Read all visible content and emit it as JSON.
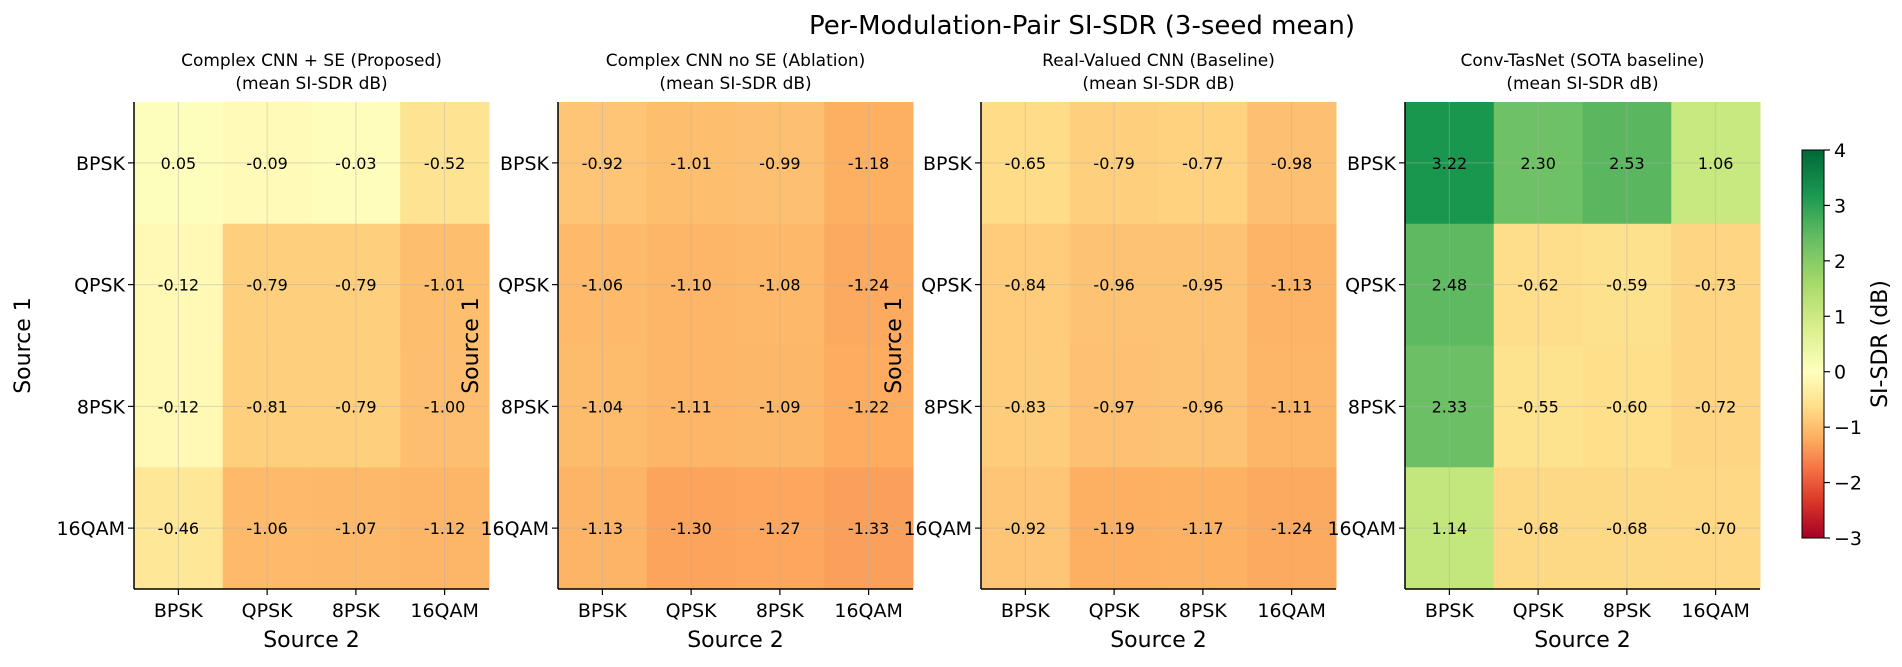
{
  "figure": {
    "title": "Per-Modulation-Pair SI-SDR (3-seed mean)"
  },
  "colorbar": {
    "label": "SI-SDR (dB)",
    "min": -3,
    "max": 4,
    "ticks": [
      -3,
      -2,
      -1,
      0,
      1,
      2,
      3,
      4
    ],
    "tick_labels": [
      "−3",
      "−2",
      "−1",
      "0",
      "1",
      "2",
      "3",
      "4"
    ],
    "colormap": "RdYlGn"
  },
  "chart_data": [
    {
      "type": "heatmap",
      "title": "Complex CNN + SE (Proposed)",
      "subtitle": "(mean SI-SDR dB)",
      "xlabel": "Source 2",
      "ylabel": "Source 1",
      "x_categories": [
        "BPSK",
        "QPSK",
        "8PSK",
        "16QAM"
      ],
      "y_categories": [
        "BPSK",
        "QPSK",
        "8PSK",
        "16QAM"
      ],
      "values": [
        [
          0.05,
          -0.09,
          -0.03,
          -0.52
        ],
        [
          -0.12,
          -0.79,
          -0.79,
          -1.01
        ],
        [
          -0.12,
          -0.81,
          -0.79,
          -1.0
        ],
        [
          -0.46,
          -1.06,
          -1.07,
          -1.12
        ]
      ],
      "labels": [
        [
          "0.05",
          "-0.09",
          "-0.03",
          "-0.52"
        ],
        [
          "-0.12",
          "-0.79",
          "-0.79",
          "-1.01"
        ],
        [
          "-0.12",
          "-0.81",
          "-0.79",
          "-1.00"
        ],
        [
          "-0.46",
          "-1.06",
          "-1.07",
          "-1.12"
        ]
      ],
      "grid": true
    },
    {
      "type": "heatmap",
      "title": "Complex CNN no SE (Ablation)",
      "subtitle": "(mean SI-SDR dB)",
      "xlabel": "Source 2",
      "ylabel": "Source 1",
      "x_categories": [
        "BPSK",
        "QPSK",
        "8PSK",
        "16QAM"
      ],
      "y_categories": [
        "BPSK",
        "QPSK",
        "8PSK",
        "16QAM"
      ],
      "values": [
        [
          -0.92,
          -1.01,
          -0.99,
          -1.18
        ],
        [
          -1.06,
          -1.1,
          -1.08,
          -1.24
        ],
        [
          -1.04,
          -1.11,
          -1.09,
          -1.22
        ],
        [
          -1.13,
          -1.3,
          -1.27,
          -1.33
        ]
      ],
      "labels": [
        [
          "-0.92",
          "-1.01",
          "-0.99",
          "-1.18"
        ],
        [
          "-1.06",
          "-1.10",
          "-1.08",
          "-1.24"
        ],
        [
          "-1.04",
          "-1.11",
          "-1.09",
          "-1.22"
        ],
        [
          "-1.13",
          "-1.30",
          "-1.27",
          "-1.33"
        ]
      ],
      "grid": true
    },
    {
      "type": "heatmap",
      "title": "Real-Valued CNN (Baseline)",
      "subtitle": "(mean SI-SDR dB)",
      "xlabel": "Source 2",
      "ylabel": "Source 1",
      "x_categories": [
        "BPSK",
        "QPSK",
        "8PSK",
        "16QAM"
      ],
      "y_categories": [
        "BPSK",
        "QPSK",
        "8PSK",
        "16QAM"
      ],
      "values": [
        [
          -0.65,
          -0.79,
          -0.77,
          -0.98
        ],
        [
          -0.84,
          -0.96,
          -0.95,
          -1.13
        ],
        [
          -0.83,
          -0.97,
          -0.96,
          -1.11
        ],
        [
          -0.92,
          -1.19,
          -1.17,
          -1.24
        ]
      ],
      "labels": [
        [
          "-0.65",
          "-0.79",
          "-0.77",
          "-0.98"
        ],
        [
          "-0.84",
          "-0.96",
          "-0.95",
          "-1.13"
        ],
        [
          "-0.83",
          "-0.97",
          "-0.96",
          "-1.11"
        ],
        [
          "-0.92",
          "-1.19",
          "-1.17",
          "-1.24"
        ]
      ],
      "grid": true
    },
    {
      "type": "heatmap",
      "title": "Conv-TasNet (SOTA baseline)",
      "subtitle": "(mean SI-SDR dB)",
      "xlabel": "Source 2",
      "ylabel": "",
      "x_categories": [
        "BPSK",
        "QPSK",
        "8PSK",
        "16QAM"
      ],
      "y_categories": [
        "BPSK",
        "QPSK",
        "8PSK",
        "16QAM"
      ],
      "values": [
        [
          3.22,
          2.3,
          2.53,
          1.06
        ],
        [
          2.48,
          -0.62,
          -0.59,
          -0.73
        ],
        [
          2.33,
          -0.55,
          -0.6,
          -0.72
        ],
        [
          1.14,
          -0.68,
          -0.68,
          -0.7
        ]
      ],
      "labels": [
        [
          "3.22",
          "2.30",
          "2.53",
          "1.06"
        ],
        [
          "2.48",
          "-0.62",
          "-0.59",
          "-0.73"
        ],
        [
          "2.33",
          "-0.55",
          "-0.60",
          "-0.72"
        ],
        [
          "1.14",
          "-0.68",
          "-0.68",
          "-0.70"
        ]
      ],
      "grid": true
    }
  ]
}
